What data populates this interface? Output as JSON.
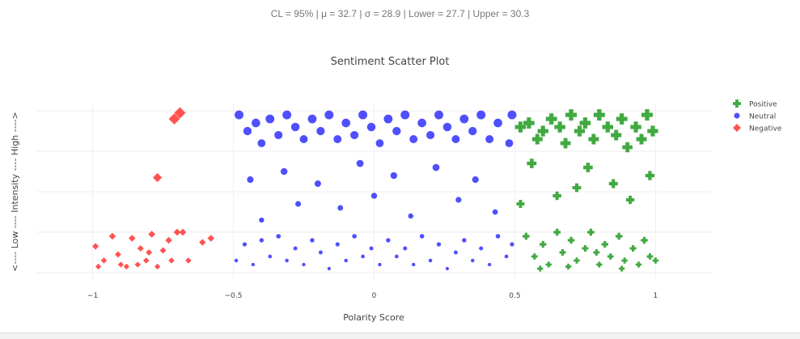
{
  "stats_line": "CL = 95% | μ = 32.7 | σ = 28.9 | Lower = 27.7 | Upper = 30.3",
  "chart_data": {
    "type": "scatter",
    "title": "Sentiment Scatter Plot",
    "xlabel": "Polarity Score",
    "ylabel": "<---- Low ---- Intensity ---- High ---->",
    "xlim": [
      -1.2,
      1.2
    ],
    "ylim": [
      -0.2,
      4.2
    ],
    "xticks": [
      "−1",
      "−0.5",
      "0",
      "0.5",
      "1"
    ],
    "xtick_values": [
      -1,
      -0.5,
      0,
      0.5,
      1
    ],
    "yticks_shown": false,
    "grid": true,
    "legend_position": "top-right",
    "series": [
      {
        "name": "Positive",
        "marker": "cross",
        "color": "#2ca02c",
        "points": [
          [
            0.52,
            3.6
          ],
          [
            0.55,
            3.7
          ],
          [
            0.58,
            3.3
          ],
          [
            0.6,
            3.5
          ],
          [
            0.63,
            3.8
          ],
          [
            0.66,
            3.6
          ],
          [
            0.68,
            3.2
          ],
          [
            0.7,
            3.9
          ],
          [
            0.73,
            3.5
          ],
          [
            0.75,
            3.7
          ],
          [
            0.78,
            3.3
          ],
          [
            0.8,
            3.9
          ],
          [
            0.83,
            3.6
          ],
          [
            0.86,
            3.4
          ],
          [
            0.88,
            3.8
          ],
          [
            0.9,
            3.1
          ],
          [
            0.93,
            3.6
          ],
          [
            0.95,
            3.3
          ],
          [
            0.97,
            3.9
          ],
          [
            0.99,
            3.5
          ],
          [
            0.56,
            2.7
          ],
          [
            0.65,
            1.9
          ],
          [
            0.72,
            2.1
          ],
          [
            0.76,
            2.6
          ],
          [
            0.85,
            2.2
          ],
          [
            0.91,
            1.8
          ],
          [
            0.98,
            2.4
          ],
          [
            0.52,
            1.7
          ],
          [
            0.54,
            0.9
          ],
          [
            0.57,
            0.4
          ],
          [
            0.6,
            0.7
          ],
          [
            0.62,
            0.2
          ],
          [
            0.65,
            1.0
          ],
          [
            0.67,
            0.5
          ],
          [
            0.7,
            0.8
          ],
          [
            0.72,
            0.3
          ],
          [
            0.75,
            0.6
          ],
          [
            0.77,
            1.0
          ],
          [
            0.8,
            0.2
          ],
          [
            0.82,
            0.7
          ],
          [
            0.84,
            0.4
          ],
          [
            0.87,
            0.9
          ],
          [
            0.89,
            0.3
          ],
          [
            0.92,
            0.6
          ],
          [
            0.94,
            0.2
          ],
          [
            0.96,
            0.8
          ],
          [
            0.98,
            0.4
          ],
          [
            1.0,
            0.3
          ],
          [
            0.59,
            0.1
          ],
          [
            0.69,
            0.15
          ],
          [
            0.79,
            0.5
          ],
          [
            0.88,
            0.1
          ]
        ]
      },
      {
        "name": "Neutral",
        "marker": "circle",
        "color": "#3d3dff",
        "points": [
          [
            -0.48,
            3.9
          ],
          [
            -0.45,
            3.5
          ],
          [
            -0.42,
            3.7
          ],
          [
            -0.4,
            3.2
          ],
          [
            -0.37,
            3.8
          ],
          [
            -0.34,
            3.4
          ],
          [
            -0.31,
            3.9
          ],
          [
            -0.28,
            3.6
          ],
          [
            -0.25,
            3.3
          ],
          [
            -0.22,
            3.8
          ],
          [
            -0.19,
            3.5
          ],
          [
            -0.16,
            3.9
          ],
          [
            -0.13,
            3.3
          ],
          [
            -0.1,
            3.7
          ],
          [
            -0.07,
            3.4
          ],
          [
            -0.04,
            3.9
          ],
          [
            -0.01,
            3.6
          ],
          [
            0.02,
            3.2
          ],
          [
            0.05,
            3.8
          ],
          [
            0.08,
            3.5
          ],
          [
            0.11,
            3.9
          ],
          [
            0.14,
            3.3
          ],
          [
            0.17,
            3.7
          ],
          [
            0.2,
            3.4
          ],
          [
            0.23,
            3.9
          ],
          [
            0.26,
            3.6
          ],
          [
            0.29,
            3.3
          ],
          [
            0.32,
            3.8
          ],
          [
            0.35,
            3.5
          ],
          [
            0.38,
            3.9
          ],
          [
            0.41,
            3.3
          ],
          [
            0.44,
            3.7
          ],
          [
            0.48,
            3.2
          ],
          [
            0.49,
            3.9
          ],
          [
            -0.44,
            2.3
          ],
          [
            -0.4,
            1.3
          ],
          [
            -0.32,
            2.5
          ],
          [
            -0.27,
            1.7
          ],
          [
            -0.2,
            2.2
          ],
          [
            -0.12,
            1.6
          ],
          [
            -0.05,
            2.7
          ],
          [
            0.0,
            1.9
          ],
          [
            0.07,
            2.4
          ],
          [
            0.13,
            1.4
          ],
          [
            0.22,
            2.6
          ],
          [
            0.3,
            1.8
          ],
          [
            0.36,
            2.3
          ],
          [
            0.43,
            1.5
          ],
          [
            -0.49,
            0.3
          ],
          [
            -0.46,
            0.7
          ],
          [
            -0.43,
            0.2
          ],
          [
            -0.4,
            0.8
          ],
          [
            -0.37,
            0.4
          ],
          [
            -0.34,
            0.9
          ],
          [
            -0.31,
            0.3
          ],
          [
            -0.28,
            0.6
          ],
          [
            -0.25,
            0.2
          ],
          [
            -0.22,
            0.8
          ],
          [
            -0.19,
            0.5
          ],
          [
            -0.16,
            0.1
          ],
          [
            -0.13,
            0.7
          ],
          [
            -0.1,
            0.3
          ],
          [
            -0.07,
            0.9
          ],
          [
            -0.04,
            0.4
          ],
          [
            -0.01,
            0.6
          ],
          [
            0.02,
            0.2
          ],
          [
            0.05,
            0.8
          ],
          [
            0.08,
            0.4
          ],
          [
            0.11,
            0.6
          ],
          [
            0.14,
            0.2
          ],
          [
            0.17,
            0.9
          ],
          [
            0.2,
            0.3
          ],
          [
            0.23,
            0.7
          ],
          [
            0.26,
            0.1
          ],
          [
            0.29,
            0.5
          ],
          [
            0.32,
            0.8
          ],
          [
            0.35,
            0.3
          ],
          [
            0.38,
            0.6
          ],
          [
            0.41,
            0.2
          ],
          [
            0.44,
            0.9
          ],
          [
            0.47,
            0.4
          ],
          [
            0.49,
            0.7
          ]
        ]
      },
      {
        "name": "Negative",
        "marker": "diamond",
        "color": "#ff4040",
        "points": [
          [
            -0.99,
            0.65
          ],
          [
            -0.96,
            0.3
          ],
          [
            -0.93,
            0.9
          ],
          [
            -0.91,
            0.45
          ],
          [
            -0.88,
            0.15
          ],
          [
            -0.86,
            0.85
          ],
          [
            -0.83,
            0.6
          ],
          [
            -0.81,
            0.3
          ],
          [
            -0.79,
            0.95
          ],
          [
            -0.77,
            0.15
          ],
          [
            -0.75,
            0.55
          ],
          [
            -0.73,
            0.8
          ],
          [
            -0.72,
            0.3
          ],
          [
            -0.7,
            1.0
          ],
          [
            -0.68,
            1.0
          ],
          [
            -0.66,
            0.3
          ],
          [
            -0.61,
            0.75
          ],
          [
            -0.58,
            0.85
          ],
          [
            -0.9,
            0.2
          ],
          [
            -0.84,
            0.2
          ],
          [
            -0.98,
            0.15
          ],
          [
            -0.8,
            0.5
          ],
          [
            -0.71,
            3.8
          ],
          [
            -0.69,
            3.95
          ],
          [
            -0.77,
            2.35
          ]
        ]
      }
    ]
  }
}
